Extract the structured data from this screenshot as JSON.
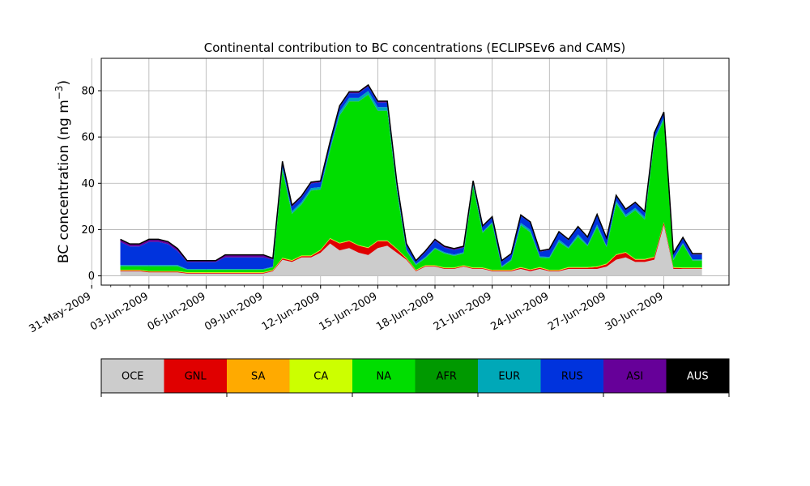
{
  "chart_data": {
    "type": "area",
    "title": "Continental contribution to BC concentrations (ECLIPSEv6 and CAMS)",
    "ylabel_main": "BC concentration (ng m",
    "ylabel_sup": "−3",
    "ylabel_tail": ")",
    "xlabel": "",
    "ylim": [
      -4,
      94
    ],
    "xlim": [
      "2009-05-31T12:00",
      "2009-07-03T10:00"
    ],
    "grid": true,
    "y_ticks": [
      0,
      20,
      40,
      60,
      80
    ],
    "y_tick_labels": [
      "0",
      "20",
      "40",
      "60",
      "80"
    ],
    "x_minor_tick_dates": [
      "2009-05-31",
      "2009-06-01",
      "2009-06-02",
      "2009-06-03",
      "2009-06-04",
      "2009-06-05",
      "2009-06-06",
      "2009-06-07",
      "2009-06-08",
      "2009-06-09",
      "2009-06-10",
      "2009-06-11",
      "2009-06-12",
      "2009-06-13",
      "2009-06-14",
      "2009-06-15",
      "2009-06-16",
      "2009-06-17",
      "2009-06-18",
      "2009-06-19",
      "2009-06-20",
      "2009-06-21",
      "2009-06-22",
      "2009-06-23",
      "2009-06-24",
      "2009-06-25",
      "2009-06-26",
      "2009-06-27",
      "2009-06-28",
      "2009-06-29",
      "2009-06-30",
      "2009-07-01",
      "2009-07-02"
    ],
    "x_tick_dates": [
      "2009-05-31",
      "2009-06-03",
      "2009-06-06",
      "2009-06-09",
      "2009-06-12",
      "2009-06-15",
      "2009-06-18",
      "2009-06-21",
      "2009-06-24",
      "2009-06-27",
      "2009-06-30"
    ],
    "x_tick_labels": [
      "31-May-2009",
      "03-Jun-2009",
      "06-Jun-2009",
      "09-Jun-2009",
      "12-Jun-2009",
      "15-Jun-2009",
      "18-Jun-2009",
      "21-Jun-2009",
      "24-Jun-2009",
      "27-Jun-2009",
      "30-Jun-2009"
    ],
    "dates": [
      "2009-06-01T12:00",
      "2009-06-02",
      "2009-06-02T12:00",
      "2009-06-03",
      "2009-06-03T12:00",
      "2009-06-04",
      "2009-06-04T12:00",
      "2009-06-05",
      "2009-06-05T12:00",
      "2009-06-06",
      "2009-06-06T12:00",
      "2009-06-07",
      "2009-06-07T12:00",
      "2009-06-08",
      "2009-06-08T12:00",
      "2009-06-09",
      "2009-06-09T12:00",
      "2009-06-10",
      "2009-06-10T12:00",
      "2009-06-11",
      "2009-06-11T12:00",
      "2009-06-12",
      "2009-06-12T12:00",
      "2009-06-13",
      "2009-06-13T12:00",
      "2009-06-14",
      "2009-06-14T12:00",
      "2009-06-15",
      "2009-06-15T12:00",
      "2009-06-16",
      "2009-06-16T12:00",
      "2009-06-17",
      "2009-06-17T12:00",
      "2009-06-18",
      "2009-06-18T12:00",
      "2009-06-19",
      "2009-06-19T12:00",
      "2009-06-20",
      "2009-06-20T12:00",
      "2009-06-21",
      "2009-06-21T12:00",
      "2009-06-22",
      "2009-06-22T12:00",
      "2009-06-23",
      "2009-06-23T12:00",
      "2009-06-24",
      "2009-06-24T12:00",
      "2009-06-25",
      "2009-06-25T12:00",
      "2009-06-26",
      "2009-06-26T12:00",
      "2009-06-27",
      "2009-06-27T12:00",
      "2009-06-28",
      "2009-06-28T12:00",
      "2009-06-29",
      "2009-06-29T12:00",
      "2009-06-30",
      "2009-06-30T12:00",
      "2009-07-01",
      "2009-07-01T12:00",
      "2009-07-02"
    ],
    "series": [
      {
        "name": "OCE",
        "color": "#cccccc",
        "values": [
          2,
          2,
          2,
          1.5,
          1.5,
          1.5,
          1.5,
          1,
          1,
          1,
          1,
          1,
          1,
          1,
          1,
          1,
          2,
          7,
          6,
          8,
          8,
          10,
          14,
          11,
          12,
          10,
          9,
          12,
          13,
          10,
          7,
          2,
          4,
          4,
          3,
          3,
          4,
          3,
          3,
          2,
          2,
          2,
          3,
          2,
          3,
          2,
          2,
          3,
          3,
          3,
          3,
          4,
          7,
          8,
          6,
          6,
          7,
          22,
          3,
          3,
          3,
          3
        ]
      },
      {
        "name": "GNL",
        "color": "#e00000",
        "values": [
          0.3,
          0.3,
          0.3,
          0.3,
          0.3,
          0.3,
          0.3,
          0.3,
          0.3,
          0.3,
          0.3,
          0.3,
          0.3,
          0.3,
          0.3,
          0.3,
          0.3,
          0.5,
          0.5,
          0.5,
          0.5,
          1,
          2,
          3,
          3,
          3,
          3,
          3,
          2,
          1.5,
          0.5,
          0.3,
          0.3,
          0.3,
          0.3,
          0.3,
          0.3,
          0.3,
          0.3,
          0.3,
          0.3,
          0.3,
          0.5,
          0.5,
          0.5,
          0.3,
          0.3,
          0.5,
          0.5,
          0.5,
          0.8,
          1,
          2,
          2,
          1,
          1,
          1,
          1,
          0.5,
          0.3,
          0.3,
          0.3
        ]
      },
      {
        "name": "SA",
        "color": "#ffaa00",
        "values": [
          0.1,
          0.1,
          0.1,
          0.1,
          0.1,
          0.1,
          0.1,
          0.1,
          0.1,
          0.1,
          0.1,
          0.1,
          0.1,
          0.1,
          0.1,
          0.1,
          0.1,
          0.1,
          0.1,
          0.1,
          0.1,
          0.1,
          0.1,
          0.1,
          0.1,
          0.1,
          0.1,
          0.1,
          0.1,
          0.1,
          0.1,
          0.1,
          0.1,
          0.1,
          0.1,
          0.1,
          0.1,
          0.1,
          0.1,
          0.1,
          0.1,
          0.1,
          0.1,
          0.1,
          0.1,
          0.1,
          0.1,
          0.1,
          0.1,
          0.1,
          0.1,
          0.1,
          0.1,
          0.1,
          0.1,
          0.1,
          0.1,
          0.1,
          0.1,
          0.1,
          0.1,
          0.1
        ]
      },
      {
        "name": "CA",
        "color": "#ccff00",
        "values": [
          0.2,
          0.2,
          0.2,
          0.2,
          0.2,
          0.2,
          0.2,
          0.2,
          0.2,
          0.2,
          0.2,
          0.2,
          0.2,
          0.2,
          0.2,
          0.2,
          0.2,
          0.2,
          0.2,
          0.2,
          0.2,
          0.2,
          0.2,
          0.2,
          0.2,
          0.2,
          0.2,
          0.2,
          0.2,
          0.2,
          0.2,
          0.2,
          0.2,
          0.2,
          0.2,
          0.2,
          0.2,
          0.2,
          0.2,
          0.2,
          0.2,
          0.2,
          0.2,
          0.2,
          0.2,
          0.2,
          0.2,
          0.2,
          0.2,
          0.2,
          0.2,
          0.2,
          0.2,
          0.2,
          0.2,
          0.2,
          0.2,
          0.2,
          0.2,
          0.2,
          0.2,
          0.2
        ]
      },
      {
        "name": "NA",
        "color": "#00dd00",
        "values": [
          1.5,
          1.5,
          1.5,
          2,
          2,
          2,
          2,
          1,
          1,
          1,
          1,
          1,
          1,
          1,
          1,
          1,
          1,
          38,
          20,
          22,
          28,
          26,
          38,
          55,
          60,
          62,
          66,
          56,
          56,
          25,
          3,
          2,
          3,
          7,
          6,
          5,
          5,
          35,
          15,
          20,
          1,
          4,
          18,
          16,
          4,
          5,
          12,
          8,
          13,
          9,
          17,
          7,
          22,
          15,
          21,
          17,
          50,
          44,
          3,
          10,
          3,
          3
        ]
      },
      {
        "name": "AFR",
        "color": "#009900",
        "values": [
          0.1,
          0.1,
          0.1,
          0.1,
          0.1,
          0.1,
          0.1,
          0.1,
          0.1,
          0.1,
          0.1,
          0.1,
          0.1,
          0.1,
          0.1,
          0.1,
          0.1,
          0.1,
          0.1,
          0.1,
          0.1,
          0.1,
          0.1,
          0.1,
          0.1,
          0.1,
          0.1,
          0.1,
          0.1,
          0.1,
          0.1,
          0.1,
          0.1,
          0.1,
          0.1,
          0.1,
          0.1,
          0.1,
          0.1,
          0.1,
          0.1,
          0.1,
          0.1,
          0.1,
          0.1,
          0.1,
          0.1,
          0.1,
          0.1,
          0.1,
          0.1,
          0.1,
          0.1,
          0.1,
          0.1,
          0.1,
          0.1,
          0.1,
          0.1,
          0.1,
          0.1,
          0.1
        ]
      },
      {
        "name": "EUR",
        "color": "#00a8b8",
        "values": [
          0.5,
          0.5,
          0.5,
          0.5,
          0.5,
          0.5,
          0.5,
          0.3,
          0.3,
          0.3,
          0.3,
          0.3,
          0.3,
          0.3,
          0.3,
          0.3,
          0.3,
          1,
          1,
          1,
          1,
          1,
          1,
          1.5,
          1.5,
          1.5,
          1.5,
          1.5,
          1.5,
          1,
          0.5,
          0.5,
          0.5,
          0.5,
          0.5,
          0.5,
          0.5,
          1,
          0.5,
          0.5,
          0.5,
          0.5,
          1,
          1,
          0.5,
          0.5,
          1,
          0.5,
          1,
          0.5,
          1,
          0.5,
          1,
          1,
          1,
          1,
          1,
          1,
          0.5,
          0.5,
          0.5,
          0.5
        ]
      },
      {
        "name": "RUS",
        "color": "#0033dd",
        "values": [
          10,
          8,
          8,
          10,
          10,
          9,
          6,
          3,
          3,
          3,
          3,
          5,
          5,
          5,
          5,
          5,
          3,
          2,
          2,
          2,
          2,
          2,
          2,
          2,
          2,
          2,
          2,
          2,
          2,
          2,
          2,
          1,
          2,
          3,
          2,
          2,
          2,
          1,
          2,
          2,
          2,
          2,
          3,
          3,
          2,
          3,
          3,
          3,
          3,
          3,
          4,
          3,
          2,
          2,
          2,
          2,
          2,
          2,
          2,
          2,
          2,
          2
        ]
      },
      {
        "name": "ASI",
        "color": "#660099",
        "values": [
          1,
          1,
          1,
          1,
          1,
          1,
          1,
          0.5,
          0.5,
          0.5,
          0.5,
          1,
          1,
          1,
          1,
          1,
          0.5,
          0.5,
          0.5,
          0.5,
          0.5,
          0.5,
          0.5,
          0.5,
          0.5,
          0.5,
          0.5,
          0.5,
          0.5,
          0.5,
          0.5,
          0.3,
          0.5,
          0.5,
          0.5,
          0.5,
          0.5,
          0.3,
          0.3,
          0.3,
          0.3,
          0.3,
          0.3,
          0.3,
          0.3,
          0.3,
          0.3,
          0.3,
          0.3,
          0.3,
          0.3,
          0.3,
          0.3,
          0.3,
          0.3,
          0.3,
          0.3,
          0.3,
          0.3,
          0.3,
          0.3,
          0.3
        ]
      },
      {
        "name": "AUS",
        "color": "#000000",
        "values": [
          0.1,
          0.1,
          0.1,
          0.1,
          0.1,
          0.1,
          0.1,
          0.1,
          0.1,
          0.1,
          0.1,
          0.1,
          0.1,
          0.1,
          0.1,
          0.1,
          0.1,
          0.1,
          0.1,
          0.1,
          0.1,
          0.1,
          0.1,
          0.1,
          0.1,
          0.1,
          0.1,
          0.1,
          0.1,
          0.1,
          0.1,
          0.1,
          0.1,
          0.1,
          0.1,
          0.1,
          0.1,
          0.1,
          0.1,
          0.1,
          0.1,
          0.1,
          0.1,
          0.1,
          0.1,
          0.1,
          0.1,
          0.1,
          0.1,
          0.1,
          0.1,
          0.1,
          0.1,
          0.1,
          0.1,
          0.1,
          0.1,
          0.1,
          0.1,
          0.1,
          0.1,
          0.1
        ]
      }
    ],
    "legend": {
      "placement": "bottom",
      "entries": [
        {
          "label": "OCE",
          "color": "#cccccc",
          "text_color": "#000000"
        },
        {
          "label": "GNL",
          "color": "#e00000",
          "text_color": "#000000"
        },
        {
          "label": "SA",
          "color": "#ffaa00",
          "text_color": "#000000"
        },
        {
          "label": "CA",
          "color": "#ccff00",
          "text_color": "#000000"
        },
        {
          "label": "NA",
          "color": "#00dd00",
          "text_color": "#000000"
        },
        {
          "label": "AFR",
          "color": "#009900",
          "text_color": "#000000"
        },
        {
          "label": "EUR",
          "color": "#00a8b8",
          "text_color": "#000000"
        },
        {
          "label": "RUS",
          "color": "#0033dd",
          "text_color": "#000000"
        },
        {
          "label": "ASI",
          "color": "#660099",
          "text_color": "#000000"
        },
        {
          "label": "AUS",
          "color": "#000000",
          "text_color": "#ffffff"
        }
      ]
    }
  }
}
